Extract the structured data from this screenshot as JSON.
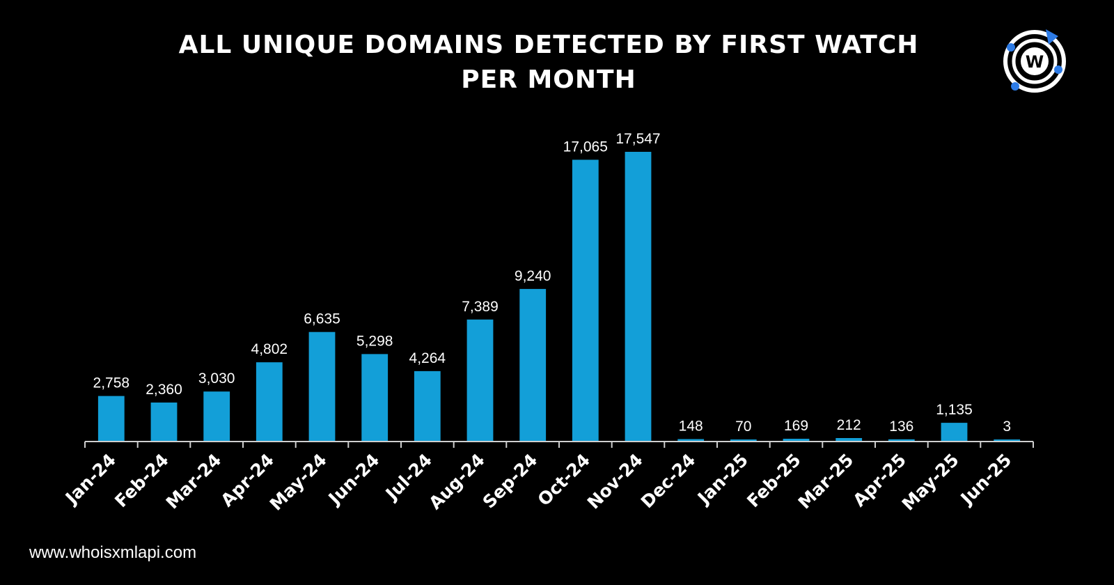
{
  "header": {
    "title_line1": "ALL UNIQUE DOMAINS DETECTED BY FIRST WATCH",
    "title_line2": "PER MONTH"
  },
  "logo": {
    "icon": "whoisxmlapi-logo-icon",
    "letter": "W"
  },
  "footer": {
    "url": "www.whoisxmlapi.com"
  },
  "colors": {
    "background": "#000000",
    "bar": "#139fd8",
    "text": "#ffffff",
    "axis": "#cfcfcf",
    "logo_accent": "#2d7be6"
  },
  "chart_data": {
    "type": "bar",
    "title": "ALL UNIQUE DOMAINS DETECTED BY FIRST WATCH PER MONTH",
    "categories": [
      "Jan-24",
      "Feb-24",
      "Mar-24",
      "Apr-24",
      "May-24",
      "Jun-24",
      "Jul-24",
      "Aug-24",
      "Sep-24",
      "Oct-24",
      "Nov-24",
      "Dec-24",
      "Jan-25",
      "Feb-25",
      "Mar-25",
      "Apr-25",
      "May-25",
      "Jun-25"
    ],
    "values": [
      2758,
      2360,
      3030,
      4802,
      6635,
      5298,
      4264,
      7389,
      9240,
      17065,
      17547,
      148,
      70,
      169,
      212,
      136,
      1135,
      3
    ],
    "value_labels": [
      "2,758",
      "2,360",
      "3,030",
      "4,802",
      "6,635",
      "5,298",
      "4,264",
      "7,389",
      "9,240",
      "17,065",
      "17,547",
      "148",
      "70",
      "169",
      "212",
      "136",
      "1,135",
      "3"
    ],
    "ylim": [
      0,
      17547
    ],
    "grid": false,
    "legend": "none",
    "y_axis_visible": false
  }
}
